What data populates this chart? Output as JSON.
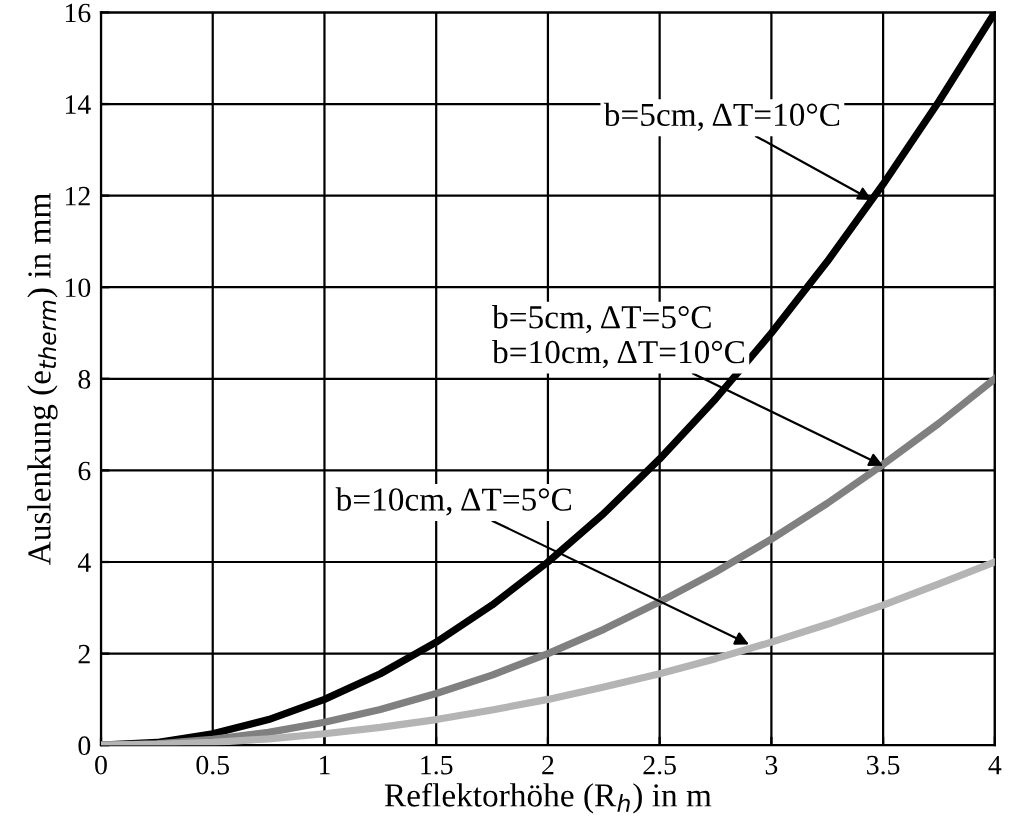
{
  "chart_data": {
    "type": "line",
    "xlabel": "Reflektorhöhe (R$_{h}$) in m",
    "ylabel": "Auslenkung (e$_{therm}$) in mm",
    "x": [
      0,
      0.25,
      0.5,
      0.75,
      1,
      1.25,
      1.5,
      1.75,
      2,
      2.25,
      2.5,
      2.75,
      3,
      3.25,
      3.5,
      3.75,
      4
    ],
    "series": [
      {
        "color": "#000000",
        "values": [
          0,
          0.06,
          0.25,
          0.56,
          1,
          1.56,
          2.25,
          3.06,
          4,
          5.06,
          6.25,
          7.56,
          9,
          10.56,
          12.25,
          14.06,
          16
        ]
      },
      {
        "color": "#808080",
        "values": [
          0,
          0.03,
          0.13,
          0.28,
          0.5,
          0.78,
          1.13,
          1.53,
          2,
          2.53,
          3.13,
          3.78,
          4.5,
          5.28,
          6.13,
          7.03,
          8
        ]
      },
      {
        "color": "#b4b4b4",
        "values": [
          0,
          0.02,
          0.06,
          0.14,
          0.25,
          0.39,
          0.56,
          0.77,
          1,
          1.27,
          1.56,
          1.89,
          2.25,
          2.64,
          3.06,
          3.52,
          4
        ]
      }
    ],
    "annotations": [
      {
        "text": "b=5cm, ΔT=10°C",
        "x": 3.45,
        "y": 11.9
      },
      {
        "text": "b=5cm, ΔT=5°C\nb=10cm, ΔT=10°C",
        "x": 3.5,
        "y": 6.1
      },
      {
        "text": "b=10cm, ΔT=5°C",
        "x": 2.9,
        "y": 2.2
      }
    ],
    "xlim": [
      0,
      4
    ],
    "ylim": [
      0,
      16
    ],
    "xticks": [
      0,
      0.5,
      1,
      1.5,
      2,
      2.5,
      3,
      3.5,
      4
    ],
    "yticks": [
      0,
      2,
      4,
      6,
      8,
      10,
      12,
      14,
      16
    ],
    "grid": true,
    "line_style": "solid",
    "marker": "none"
  }
}
